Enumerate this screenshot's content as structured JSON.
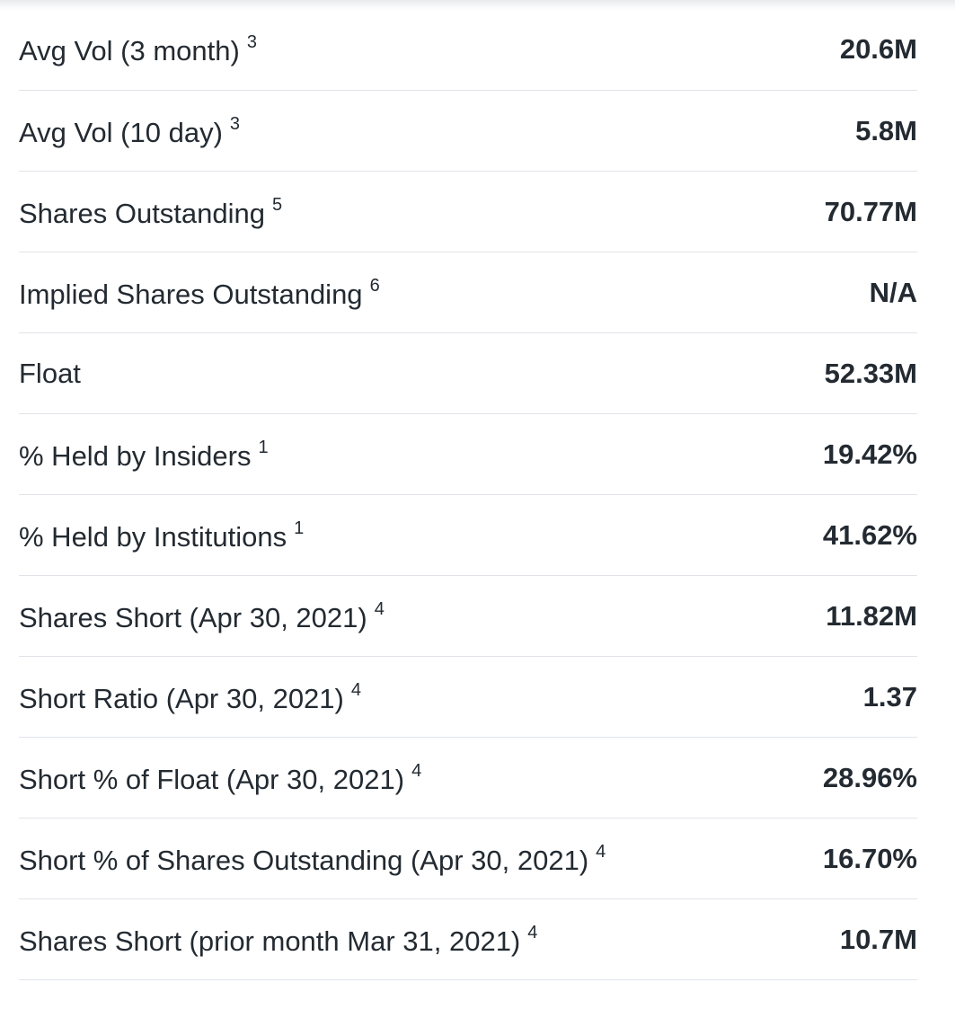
{
  "statistics": {
    "rows": [
      {
        "label": "Avg Vol (3 month)",
        "note": "3",
        "value": "20.6M"
      },
      {
        "label": "Avg Vol (10 day)",
        "note": "3",
        "value": "5.8M"
      },
      {
        "label": "Shares Outstanding",
        "note": "5",
        "value": "70.77M"
      },
      {
        "label": "Implied Shares Outstanding",
        "note": "6",
        "value": "N/A"
      },
      {
        "label": "Float",
        "note": "",
        "value": "52.33M"
      },
      {
        "label": "% Held by Insiders",
        "note": "1",
        "value": "19.42%"
      },
      {
        "label": "% Held by Institutions",
        "note": "1",
        "value": "41.62%"
      },
      {
        "label": "Shares Short (Apr 30, 2021)",
        "note": "4",
        "value": "11.82M"
      },
      {
        "label": "Short Ratio (Apr 30, 2021)",
        "note": "4",
        "value": "1.37"
      },
      {
        "label": "Short % of Float (Apr 30, 2021)",
        "note": "4",
        "value": "28.96%"
      },
      {
        "label": "Short % of Shares Outstanding (Apr 30, 2021)",
        "note": "4",
        "value": "16.70%"
      },
      {
        "label": "Shares Short (prior month Mar 31, 2021)",
        "note": "4",
        "value": "10.7M"
      }
    ]
  }
}
